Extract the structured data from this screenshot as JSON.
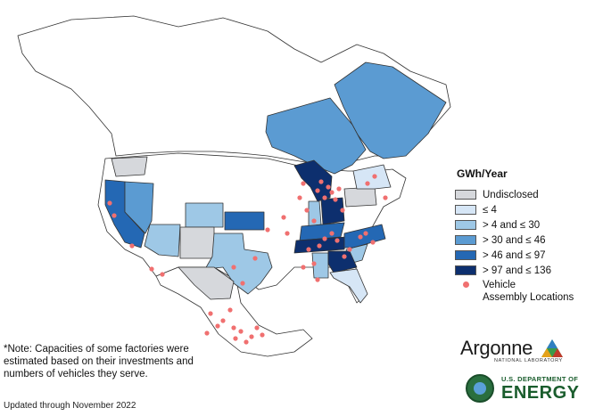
{
  "legend": {
    "title": "GWh/Year",
    "items": [
      {
        "label": "Undisclosed",
        "color": "#d6d8dc"
      },
      {
        "label": "≤ 4",
        "color": "#d6e6f6"
      },
      {
        "label": "> 4 and ≤ 30",
        "color": "#9ec8e6"
      },
      {
        "label": "> 30 and ≤ 46",
        "color": "#5b9bd2"
      },
      {
        "label": "> 46 and ≤ 97",
        "color": "#2468b4"
      },
      {
        "label": "> 97 and ≤ 136",
        "color": "#0d2f6e"
      }
    ],
    "marker": {
      "line1": "Vehicle",
      "line2": "Assembly Locations",
      "color": "#f07070"
    }
  },
  "note": "*Note: Capacities of some factories were estimated based on their investments and numbers of vehicles they serve.",
  "updated": "Updated through November 2022",
  "logos": {
    "argonne_name": "Argonne",
    "argonne_sub": "NATIONAL LABORATORY",
    "doe_top": "U.S. DEPARTMENT OF",
    "doe_main": "ENERGY"
  },
  "regions": [
    {
      "name": "Quebec",
      "class": "> 30 and ≤ 46"
    },
    {
      "name": "Ontario",
      "class": "> 30 and ≤ 46"
    },
    {
      "name": "Washington",
      "class": "Undisclosed"
    },
    {
      "name": "Oregon",
      "class": "Undisclosed"
    },
    {
      "name": "California",
      "class": "> 46 and ≤ 97"
    },
    {
      "name": "Nevada",
      "class": "> 30 and ≤ 46"
    },
    {
      "name": "Arizona",
      "class": "> 4 and ≤ 30"
    },
    {
      "name": "Colorado",
      "class": "> 4 and ≤ 30"
    },
    {
      "name": "Kansas",
      "class": "> 46 and ≤ 97"
    },
    {
      "name": "Texas",
      "class": "> 4 and ≤ 30"
    },
    {
      "name": "New Mexico",
      "class": "Undisclosed"
    },
    {
      "name": "Michigan",
      "class": "> 97 and ≤ 136"
    },
    {
      "name": "Ohio",
      "class": "> 97 and ≤ 136"
    },
    {
      "name": "Indiana",
      "class": "> 4 and ≤ 30"
    },
    {
      "name": "Kentucky",
      "class": "> 46 and ≤ 97"
    },
    {
      "name": "Tennessee",
      "class": "> 97 and ≤ 136"
    },
    {
      "name": "Georgia",
      "class": "> 97 and ≤ 136"
    },
    {
      "name": "North Carolina",
      "class": "> 46 and ≤ 97"
    },
    {
      "name": "South Carolina",
      "class": "> 4 and ≤ 30"
    },
    {
      "name": "Alabama",
      "class": "> 4 and ≤ 30"
    },
    {
      "name": "Florida",
      "class": "≤ 4"
    },
    {
      "name": "New York",
      "class": "≤ 4"
    },
    {
      "name": "Pennsylvania",
      "class": "Undisclosed"
    },
    {
      "name": "Mexico (central)",
      "class": "Undisclosed"
    }
  ]
}
